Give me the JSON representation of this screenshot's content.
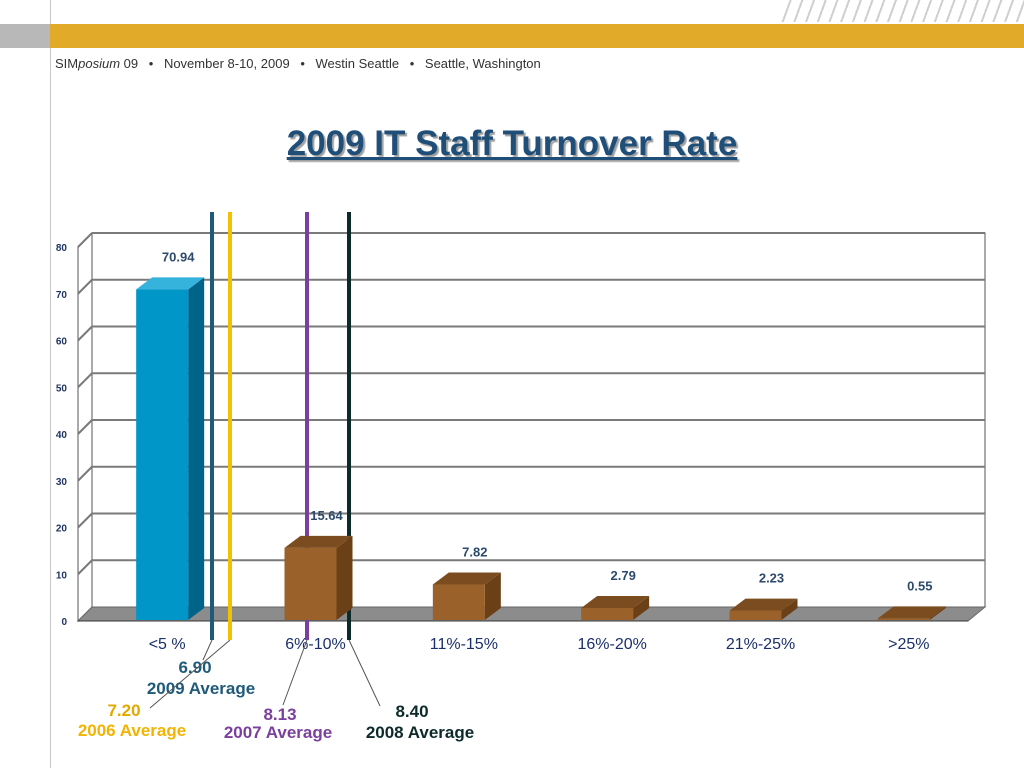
{
  "header": {
    "brand_prefix": "SIM",
    "brand_italic": "posium",
    "brand_suffix": " 09",
    "date": "November 8-10, 2009",
    "venue": "Westin Seattle",
    "city": "Seattle, Washington"
  },
  "colors": {
    "band_gold": "#e1aa28",
    "bar_blue": "#0096c8",
    "bar_brown": "#9a622a"
  },
  "chart_data": {
    "type": "bar",
    "title": "2009 IT Staff Turnover Rate",
    "categories": [
      "<5 %",
      "6%-10%",
      "11%-15%",
      "16%-20%",
      "21%-25%",
      ">25%"
    ],
    "values": [
      70.94,
      15.64,
      7.82,
      2.79,
      2.23,
      0.55
    ],
    "data_labels": [
      "70.94",
      "15.64",
      "7.82",
      "2.79",
      "2.23",
      "0.55"
    ],
    "ylim": [
      0,
      80
    ],
    "yticks": [
      0,
      10,
      20,
      30,
      40,
      50,
      60,
      70,
      80
    ],
    "grid": true,
    "reference_lines": [
      {
        "value": "6.90",
        "label": "2009 Average",
        "color": "#1f5a7a"
      },
      {
        "value": "7.20",
        "label": "2006 Average",
        "color": "#f2c200"
      },
      {
        "value": "8.13",
        "label": "2007 Average",
        "color": "#7b3f9e"
      },
      {
        "value": "8.40",
        "label": "2008 Average",
        "color": "#0d2a2a"
      }
    ]
  }
}
